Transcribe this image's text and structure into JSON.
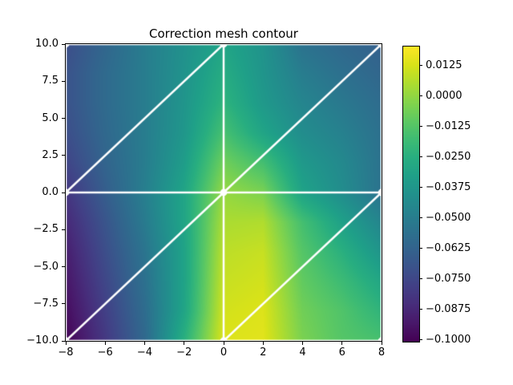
{
  "title": "Correction mesh contour",
  "chart_data": {
    "type": "heatmap",
    "title": "Correction mesh contour",
    "xlim": [
      -8,
      8
    ],
    "ylim": [
      -10,
      10
    ],
    "x_tick_values": [
      -8,
      -6,
      -4,
      -2,
      0,
      2,
      4,
      6,
      8
    ],
    "x_tick_labels": [
      "−8",
      "−6",
      "−4",
      "−2",
      "0",
      "2",
      "4",
      "6",
      "8"
    ],
    "y_tick_values": [
      10,
      7.5,
      5,
      2.5,
      0,
      -2.5,
      -5,
      -7.5,
      -10
    ],
    "y_tick_labels": [
      "10.0",
      "7.5",
      "5.0",
      "2.5",
      "0.0",
      "−2.5",
      "−5.0",
      "−7.5",
      "−10.0"
    ],
    "colormap": "viridis",
    "colormap_stops": [
      "#440154",
      "#48186a",
      "#472d7b",
      "#424086",
      "#3b528b",
      "#33638d",
      "#2c728e",
      "#26828e",
      "#21918c",
      "#1fa088",
      "#28ae80",
      "#3fbc73",
      "#5ec962",
      "#84d44b",
      "#addc30",
      "#d8e219",
      "#fde725"
    ],
    "color_range": [
      -0.1005,
      0.0205
    ],
    "colorbar_tick_values": [
      0.0125,
      0.0,
      -0.0125,
      -0.025,
      -0.0375,
      -0.05,
      -0.0625,
      -0.075,
      -0.0875,
      -0.1
    ],
    "colorbar_tick_labels": [
      "0.0125",
      "0.0000",
      "−0.0125",
      "−0.0250",
      "−0.0375",
      "−0.0500",
      "−0.0625",
      "−0.0750",
      "−0.0875",
      "−0.1000"
    ],
    "grid_x": [
      -8,
      -6,
      -4,
      -2,
      0,
      2,
      4,
      6,
      8
    ],
    "grid_y": [
      10,
      8,
      6,
      4,
      2,
      0,
      -2,
      -4,
      -6,
      -8,
      -10
    ],
    "values": [
      [
        -0.072,
        -0.061,
        -0.05,
        -0.04,
        -0.03,
        -0.039,
        -0.055,
        -0.06,
        -0.064
      ],
      [
        -0.07,
        -0.059,
        -0.05,
        -0.039,
        -0.026,
        -0.038,
        -0.05,
        -0.056,
        -0.061
      ],
      [
        -0.07,
        -0.059,
        -0.05,
        -0.038,
        -0.022,
        -0.036,
        -0.046,
        -0.052,
        -0.058
      ],
      [
        -0.072,
        -0.06,
        -0.05,
        -0.037,
        -0.015,
        -0.03,
        -0.042,
        -0.048,
        -0.056
      ],
      [
        -0.076,
        -0.062,
        -0.05,
        -0.034,
        -0.006,
        -0.016,
        -0.036,
        -0.044,
        -0.055
      ],
      [
        -0.082,
        -0.065,
        -0.049,
        -0.03,
        0.001,
        -0.004,
        -0.031,
        -0.042,
        -0.055
      ],
      [
        -0.087,
        -0.069,
        -0.051,
        -0.03,
        0.005,
        0.006,
        -0.016,
        -0.032,
        -0.046
      ],
      [
        -0.091,
        -0.072,
        -0.054,
        -0.031,
        0.008,
        0.01,
        -0.012,
        -0.024,
        -0.038
      ],
      [
        -0.094,
        -0.075,
        -0.056,
        -0.031,
        0.01,
        0.012,
        -0.009,
        -0.018,
        -0.029
      ],
      [
        -0.097,
        -0.078,
        -0.058,
        -0.03,
        0.012,
        0.014,
        -0.006,
        -0.013,
        -0.022
      ],
      [
        -0.1,
        -0.081,
        -0.06,
        -0.024,
        0.014,
        0.015,
        -0.004,
        -0.012,
        -0.015
      ]
    ],
    "mesh": {
      "color": "#ffffff",
      "line_width": 2.5,
      "node_radius": 4.4,
      "nodes": [
        [
          -8,
          -10
        ],
        [
          0,
          -10
        ],
        [
          8,
          -10
        ],
        [
          -8,
          0
        ],
        [
          0,
          0
        ],
        [
          8,
          0
        ],
        [
          -8,
          10
        ],
        [
          0,
          10
        ],
        [
          8,
          10
        ]
      ],
      "edges": [
        [
          [
            -8,
            -10
          ],
          [
            0,
            -10
          ]
        ],
        [
          [
            0,
            -10
          ],
          [
            8,
            -10
          ]
        ],
        [
          [
            8,
            -10
          ],
          [
            8,
            0
          ]
        ],
        [
          [
            8,
            0
          ],
          [
            8,
            10
          ]
        ],
        [
          [
            8,
            10
          ],
          [
            0,
            10
          ]
        ],
        [
          [
            0,
            10
          ],
          [
            -8,
            10
          ]
        ],
        [
          [
            -8,
            10
          ],
          [
            -8,
            0
          ]
        ],
        [
          [
            -8,
            0
          ],
          [
            -8,
            -10
          ]
        ],
        [
          [
            -8,
            0
          ],
          [
            0,
            0
          ]
        ],
        [
          [
            0,
            0
          ],
          [
            8,
            0
          ]
        ],
        [
          [
            0,
            -10
          ],
          [
            0,
            0
          ]
        ],
        [
          [
            0,
            0
          ],
          [
            0,
            10
          ]
        ],
        [
          [
            -8,
            0
          ],
          [
            0,
            10
          ]
        ],
        [
          [
            0,
            0
          ],
          [
            8,
            10
          ]
        ],
        [
          [
            -8,
            -10
          ],
          [
            0,
            0
          ]
        ],
        [
          [
            0,
            -10
          ],
          [
            8,
            0
          ]
        ]
      ]
    }
  }
}
